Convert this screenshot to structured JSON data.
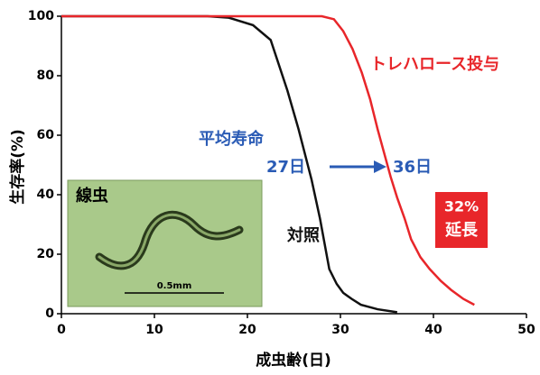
{
  "chart_data": {
    "type": "line",
    "xlabel": "成虫齢(日)",
    "ylabel": "生存率(%)",
    "xlim": [
      0,
      50
    ],
    "ylim": [
      0,
      100
    ],
    "xticks": [
      0,
      10,
      20,
      30,
      40,
      50
    ],
    "yticks": [
      0,
      20,
      40,
      60,
      80,
      100
    ],
    "series": [
      {
        "name": "対照",
        "color": "#111111",
        "x": [
          0,
          15.7,
          18,
          20.6,
          22.5,
          24.3,
          25.5,
          26.9,
          27.8,
          28.8,
          29.6,
          30.3,
          31.2,
          32.2,
          34,
          36.1
        ],
        "values": [
          100,
          100,
          99.5,
          97,
          92,
          75,
          62,
          45,
          32,
          15,
          10,
          7,
          5,
          3,
          1.5,
          0.5
        ]
      },
      {
        "name": "トレハロース投与",
        "color": "#e8262a",
        "x": [
          0,
          28,
          29.3,
          30.3,
          31.3,
          32.3,
          33.2,
          34,
          34.7,
          35.4,
          36.1,
          36.9,
          37.6,
          38.6,
          39.6,
          40.8,
          41.9,
          43.2,
          44.4
        ],
        "values": [
          100,
          100,
          99,
          95,
          89,
          81,
          72,
          62,
          54,
          46,
          39,
          32,
          25,
          19,
          15,
          11,
          8,
          5,
          3
        ]
      }
    ],
    "annotations": {
      "mean_lifespan": "平均寿命",
      "control_days": "27日",
      "treated_days": "36日",
      "extension_pct": "32%",
      "extension_word": "延長"
    },
    "inset": {
      "label": "線虫",
      "scale": "0.5mm"
    }
  }
}
